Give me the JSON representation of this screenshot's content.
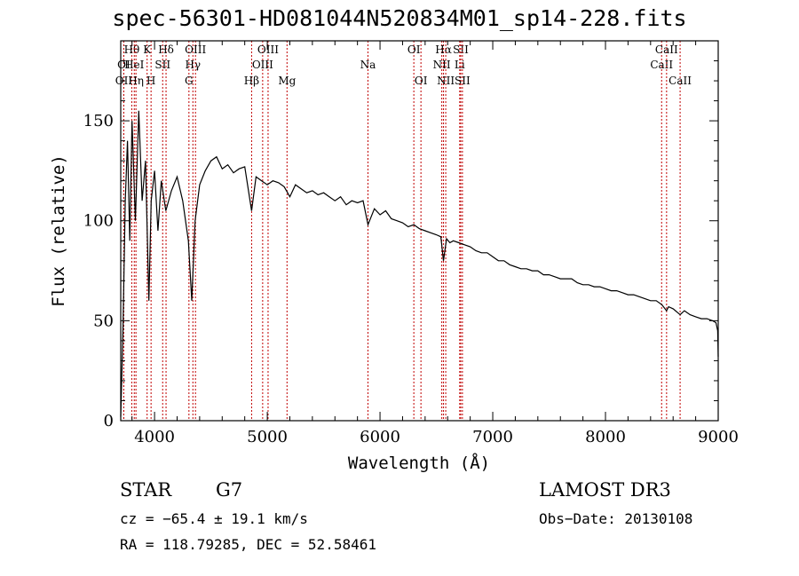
{
  "chart_data": {
    "type": "line",
    "title": "spec-56301-HD081044N520834M01_sp14-228.fits",
    "xlabel": "Wavelength (Å)",
    "ylabel": "Flux (relative)",
    "xlim": [
      3700,
      9000
    ],
    "ylim": [
      0,
      190
    ],
    "xticks": [
      "4000",
      "5000",
      "6000",
      "7000",
      "8000",
      "9000"
    ],
    "yticks": [
      "0",
      "50",
      "100",
      "150"
    ],
    "series": [
      {
        "name": "flux",
        "x": [
          3700,
          3720,
          3740,
          3760,
          3780,
          3800,
          3830,
          3860,
          3890,
          3920,
          3950,
          3970,
          4000,
          4030,
          4060,
          4100,
          4150,
          4200,
          4250,
          4300,
          4330,
          4360,
          4400,
          4450,
          4500,
          4550,
          4600,
          4650,
          4700,
          4750,
          4800,
          4861,
          4900,
          4950,
          5000,
          5050,
          5100,
          5150,
          5200,
          5250,
          5300,
          5350,
          5400,
          5450,
          5500,
          5550,
          5600,
          5650,
          5700,
          5750,
          5800,
          5850,
          5893,
          5950,
          6000,
          6050,
          6100,
          6150,
          6200,
          6250,
          6300,
          6350,
          6400,
          6450,
          6500,
          6540,
          6563,
          6590,
          6620,
          6650,
          6700,
          6750,
          6800,
          6850,
          6900,
          6950,
          7000,
          7050,
          7100,
          7150,
          7200,
          7250,
          7300,
          7350,
          7400,
          7450,
          7500,
          7550,
          7600,
          7650,
          7700,
          7750,
          7800,
          7850,
          7900,
          7950,
          8000,
          8050,
          8100,
          8150,
          8200,
          8250,
          8300,
          8350,
          8400,
          8450,
          8500,
          8542,
          8560,
          8600,
          8662,
          8700,
          8750,
          8800,
          8850,
          8900,
          8950,
          8980,
          8995,
          9000
        ],
        "y": [
          2,
          45,
          110,
          140,
          90,
          150,
          100,
          155,
          110,
          130,
          60,
          110,
          125,
          95,
          120,
          105,
          115,
          122,
          110,
          90,
          60,
          100,
          118,
          125,
          130,
          132,
          126,
          128,
          124,
          126,
          127,
          105,
          122,
          120,
          118,
          120,
          119,
          117,
          112,
          118,
          116,
          114,
          115,
          113,
          114,
          112,
          110,
          112,
          108,
          110,
          109,
          110,
          98,
          106,
          103,
          105,
          101,
          100,
          99,
          97,
          98,
          96,
          95,
          94,
          93,
          92,
          80,
          91,
          89,
          90,
          89,
          88,
          87,
          85,
          84,
          84,
          82,
          80,
          80,
          78,
          77,
          76,
          76,
          75,
          75,
          73,
          73,
          72,
          71,
          71,
          71,
          69,
          68,
          68,
          67,
          67,
          66,
          65,
          65,
          64,
          63,
          63,
          62,
          61,
          60,
          60,
          58,
          55,
          57,
          56,
          53,
          55,
          53,
          52,
          51,
          51,
          50,
          49,
          45,
          32
        ]
      }
    ],
    "lines": [
      {
        "label": "OII",
        "x": 3727,
        "row": 2
      },
      {
        "label": "OI",
        "x": 3727,
        "row": 1
      },
      {
        "label": "Hθ",
        "x": 3798,
        "row": 0
      },
      {
        "label": "HeI",
        "x": 3820,
        "row": 1
      },
      {
        "label": "Hη",
        "x": 3835,
        "row": 2
      },
      {
        "label": "K",
        "x": 3934,
        "row": 0
      },
      {
        "label": "H",
        "x": 3969,
        "row": 2
      },
      {
        "label": "SII",
        "x": 4072,
        "row": 1
      },
      {
        "label": "Hδ",
        "x": 4102,
        "row": 0
      },
      {
        "label": "G",
        "x": 4305,
        "row": 2
      },
      {
        "label": "Hγ",
        "x": 4340,
        "row": 1
      },
      {
        "label": "OIII",
        "x": 4363,
        "row": 0
      },
      {
        "label": "Hβ",
        "x": 4861,
        "row": 2
      },
      {
        "label": "OIII",
        "x": 4959,
        "row": 1
      },
      {
        "label": "OIII",
        "x": 5007,
        "row": 0
      },
      {
        "label": "Mg",
        "x": 5175,
        "row": 2
      },
      {
        "label": "Na",
        "x": 5893,
        "row": 1
      },
      {
        "label": "OI",
        "x": 6300,
        "row": 0
      },
      {
        "label": "OI",
        "x": 6363,
        "row": 2
      },
      {
        "label": "NII",
        "x": 6548,
        "row": 1
      },
      {
        "label": "Hα",
        "x": 6563,
        "row": 0
      },
      {
        "label": "NII",
        "x": 6583,
        "row": 2
      },
      {
        "label": "Li",
        "x": 6707,
        "row": 1
      },
      {
        "label": "SII",
        "x": 6716,
        "row": 0
      },
      {
        "label": "SII",
        "x": 6731,
        "row": 2
      },
      {
        "label": "CaII",
        "x": 8498,
        "row": 1
      },
      {
        "label": "CaII",
        "x": 8542,
        "row": 0
      },
      {
        "label": "CaII",
        "x": 8662,
        "row": 2
      }
    ]
  },
  "info": {
    "class": "STAR",
    "subclass": "G7",
    "survey": "LAMOST DR3",
    "cz": "cz = −65.4 ± 19.1 km/s",
    "obs_date": "Obs−Date: 20130108",
    "coords": "RA = 118.79285, DEC =  52.58461"
  }
}
